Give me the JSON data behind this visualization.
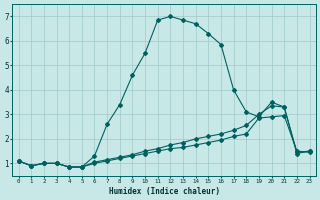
{
  "xlabel": "Humidex (Indice chaleur)",
  "ylabel": "",
  "background_color": "#c8e8e8",
  "grid_color": "#a0c8c8",
  "line_color": "#006060",
  "xlim": [
    -0.5,
    23.5
  ],
  "ylim": [
    0.5,
    7.5
  ],
  "yticks": [
    1,
    2,
    3,
    4,
    5,
    6,
    7
  ],
  "xticks": [
    0,
    1,
    2,
    3,
    4,
    5,
    6,
    7,
    8,
    9,
    10,
    11,
    12,
    13,
    14,
    15,
    16,
    17,
    18,
    19,
    20,
    21,
    22,
    23
  ],
  "xtick_labels": [
    "0",
    "1",
    "2",
    "3",
    "4",
    "5",
    "6",
    "7",
    "8",
    "9",
    "10",
    "11",
    "12",
    "13",
    "14",
    "15",
    "16",
    "17",
    "18",
    "19",
    "20",
    "21",
    "22",
    "23"
  ],
  "series1_x": [
    0,
    1,
    2,
    3,
    4,
    5,
    6,
    7,
    8,
    9,
    10,
    11,
    12,
    13,
    14,
    15,
    16,
    17,
    18,
    19,
    20,
    21,
    22,
    23
  ],
  "series1_y": [
    1.1,
    0.9,
    1.0,
    1.0,
    0.85,
    0.85,
    1.3,
    2.6,
    3.4,
    4.6,
    5.5,
    6.85,
    7.0,
    6.85,
    6.7,
    6.3,
    5.85,
    4.0,
    3.1,
    2.9,
    3.5,
    3.3,
    1.4,
    1.5
  ],
  "series2_x": [
    0,
    1,
    2,
    3,
    4,
    5,
    6,
    7,
    8,
    9,
    10,
    11,
    12,
    13,
    14,
    15,
    16,
    17,
    18,
    19,
    20,
    21,
    22,
    23
  ],
  "series2_y": [
    1.1,
    0.9,
    1.0,
    1.0,
    0.85,
    0.85,
    1.05,
    1.15,
    1.25,
    1.35,
    1.5,
    1.6,
    1.75,
    1.85,
    2.0,
    2.1,
    2.2,
    2.35,
    2.55,
    3.0,
    3.35,
    3.3,
    1.45,
    1.5
  ],
  "series3_x": [
    0,
    1,
    2,
    3,
    4,
    5,
    6,
    7,
    8,
    9,
    10,
    11,
    12,
    13,
    14,
    15,
    16,
    17,
    18,
    19,
    20,
    21,
    22,
    23
  ],
  "series3_y": [
    1.1,
    0.9,
    1.0,
    1.0,
    0.85,
    0.85,
    1.0,
    1.1,
    1.2,
    1.3,
    1.4,
    1.5,
    1.6,
    1.65,
    1.75,
    1.85,
    1.95,
    2.1,
    2.2,
    2.85,
    2.9,
    2.95,
    1.5,
    1.45
  ]
}
